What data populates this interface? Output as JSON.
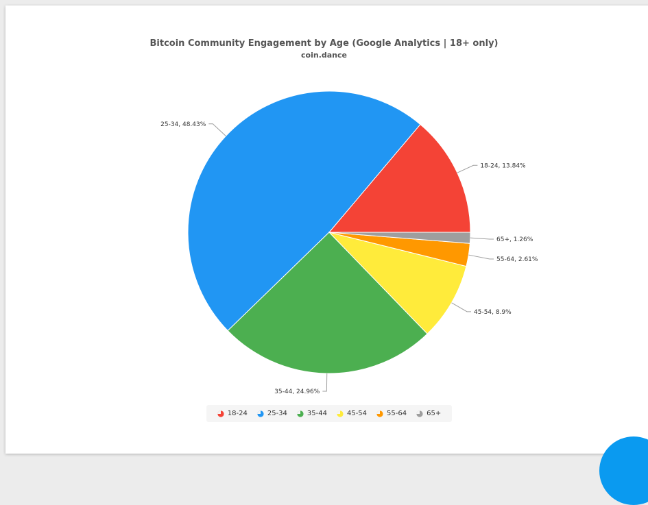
{
  "title": "Bitcoin Community Engagement by Age (Google Analytics | 18+ only)",
  "subtitle": "coin.dance",
  "colors": {
    "18-24": "#F44336",
    "25-34": "#2196F3",
    "35-44": "#4CAF50",
    "45-54": "#FFEB3B",
    "55-64": "#FF9800",
    "65+": "#9E9E9E",
    "accent_button": "#0A9AF0"
  },
  "chart_data": {
    "type": "pie",
    "title": "Bitcoin Community Engagement by Age (Google Analytics | 18+ only)",
    "subtitle": "coin.dance",
    "categories": [
      "18-24",
      "25-34",
      "35-44",
      "45-54",
      "55-64",
      "65+"
    ],
    "values": [
      13.84,
      48.43,
      24.96,
      8.9,
      2.61,
      1.26
    ],
    "labels": [
      "18-24, 13.84%",
      "25-34, 48.43%",
      "35-44, 24.96%",
      "45-54, 8.9%",
      "55-64, 2.61%",
      "65+, 1.26%"
    ],
    "legend_position": "bottom"
  },
  "legend": [
    {
      "label": "18-24"
    },
    {
      "label": "25-34"
    },
    {
      "label": "35-44"
    },
    {
      "label": "45-54"
    },
    {
      "label": "55-64"
    },
    {
      "label": "65+"
    }
  ]
}
